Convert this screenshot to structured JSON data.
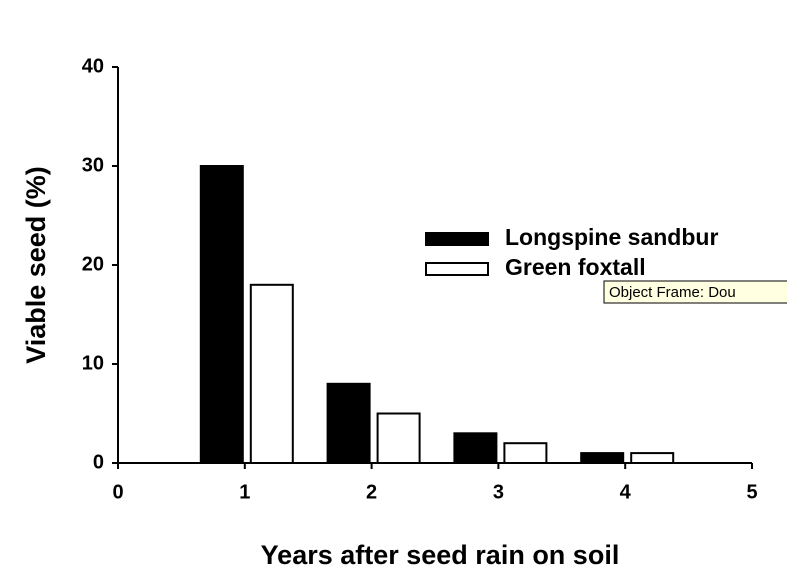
{
  "chart_data": {
    "type": "bar",
    "x_label": "Years after seed rain on soil",
    "y_label": "Viable seed (%)",
    "x": [
      1,
      2,
      3,
      4
    ],
    "series": [
      {
        "name": "Longspine sandbur",
        "color": "#000000",
        "values": [
          30,
          8,
          3,
          1
        ]
      },
      {
        "name": "Green foxtall",
        "color": "#ffffff",
        "values": [
          18,
          5,
          2,
          1
        ]
      }
    ],
    "xlim": [
      0,
      5
    ],
    "xticks": [
      0,
      1,
      2,
      3,
      4,
      5
    ],
    "ylim": [
      0,
      40
    ],
    "yticks": [
      0,
      10,
      20,
      30,
      40
    ],
    "legend": "right",
    "tooltip": "Object Frame: Dou"
  }
}
